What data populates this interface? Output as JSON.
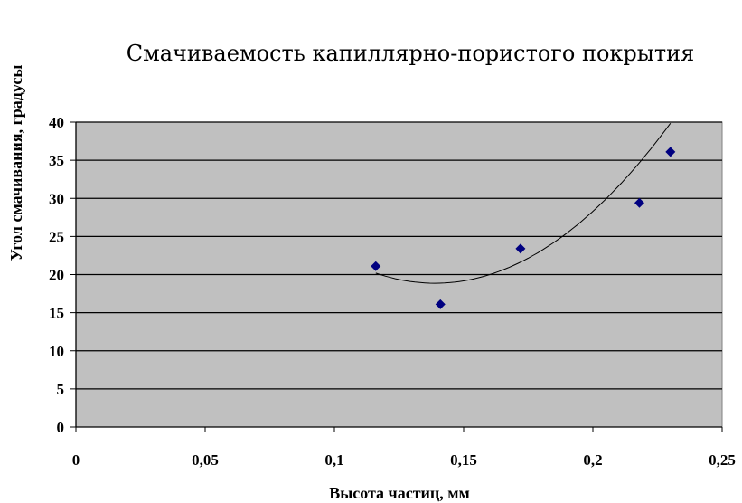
{
  "chart_data": {
    "type": "scatter",
    "title": "Смачиваемость капиллярно-пористого  покрытия",
    "xlabel": "Высота частиц, мм",
    "ylabel": "Угол смачивания, градусы",
    "xlim": [
      0,
      0.25
    ],
    "ylim": [
      0,
      40
    ],
    "x_ticks": [
      "0",
      "0,05",
      "0,1",
      "0,15",
      "0,2",
      "0,25"
    ],
    "y_ticks": [
      "0",
      "5",
      "10",
      "15",
      "20",
      "25",
      "30",
      "35",
      "40"
    ],
    "grid": true,
    "legend": "none",
    "plot_background": "#c0c0c0",
    "series": [
      {
        "marker": "diamond",
        "color": "#000080",
        "x": [
          0.116,
          0.141,
          0.172,
          0.218,
          0.23
        ],
        "y": [
          21.1,
          16.1,
          23.4,
          29.4,
          36.1
        ]
      }
    ],
    "trendline": {
      "type": "polynomial",
      "order": 2,
      "color": "#000000",
      "x_range": [
        0.116,
        0.23
      ],
      "coefficients": [
        2530,
        -703,
        67.7
      ]
    }
  }
}
